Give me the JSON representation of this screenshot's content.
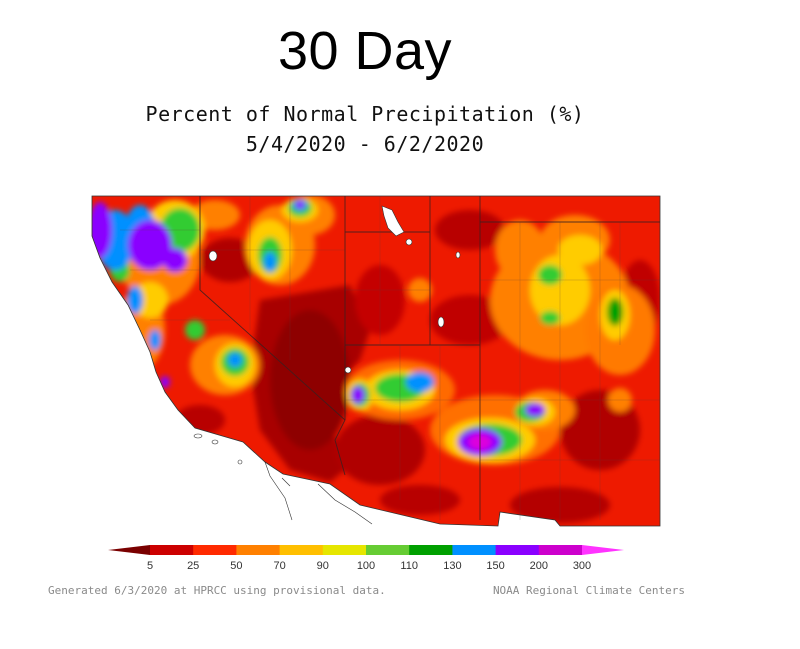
{
  "title": "30 Day",
  "subtitle_line1": "Percent of Normal Precipitation (%)",
  "subtitle_line2": "5/4/2020 - 6/2/2020",
  "legend": {
    "ticks": [
      "5",
      "25",
      "50",
      "70",
      "90",
      "100",
      "110",
      "130",
      "150",
      "200",
      "300"
    ],
    "colors": [
      "#7a0000",
      "#cc0000",
      "#ff2a00",
      "#ff8000",
      "#ffbf00",
      "#e6e600",
      "#66cc33",
      "#00a000",
      "#0090ff",
      "#8a00ff",
      "#cc00cc",
      "#ff33ff"
    ]
  },
  "footer_left": "Generated 6/3/2020 at HPRCC using provisional data.",
  "footer_right": "NOAA Regional Climate Centers"
}
